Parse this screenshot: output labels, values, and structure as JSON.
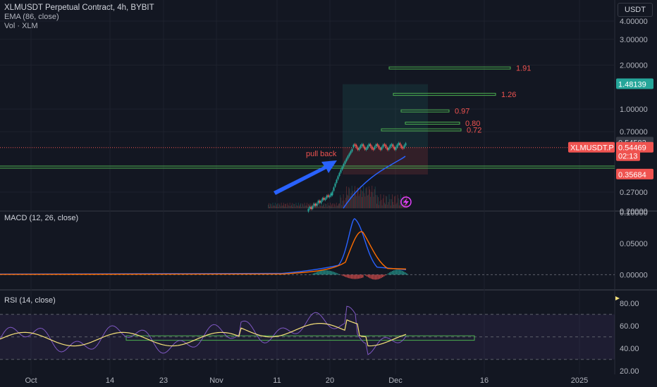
{
  "header": {
    "title": "XLMUSDT Perpetual Contract, 4h, BYBIT",
    "ema_label": "EMA (86, close)",
    "vol_label": "Vol · XLM",
    "currency_button": "USDT"
  },
  "macd_label": "MACD (12, 26, close)",
  "rsi_label": "RSI (14, close)",
  "colors": {
    "background": "#131722",
    "up": "#26a69a",
    "down": "#ef5350",
    "ema": "#2962ff",
    "macd_line": "#2962ff",
    "signal_line": "#ff6d00",
    "rsi_line": "#7e57c2",
    "rsi_ma": "#f7e27a",
    "target_green": "#4caf50",
    "annotation_arrow": "#2962ff"
  },
  "chart_data": [
    {
      "type": "candlestick",
      "pane": "price",
      "y_scale": "log",
      "ylim": [
        0.2,
        4.0
      ],
      "y_ticks": [
        "4.00000",
        "3.00000",
        "2.00000",
        "1.00000",
        "0.70000",
        "0.27000",
        "0.20000"
      ],
      "x_ticks": [
        "Oct",
        "14",
        "23",
        "Nov",
        "11",
        "20",
        "Dec",
        "16",
        "2025"
      ],
      "price_labels": [
        {
          "value": "1.48139",
          "kind": "green"
        },
        {
          "value": "0.54582",
          "kind": "gray"
        },
        {
          "value": "XLMUSDT.P",
          "kind": "red"
        },
        {
          "value": "0.54469",
          "kind": "red"
        },
        {
          "value": "02:13",
          "kind": "red"
        },
        {
          "value": "0.35684",
          "kind": "red"
        }
      ],
      "fib_targets": [
        {
          "label": "1.91",
          "price": 1.91
        },
        {
          "label": "1.26",
          "price": 1.26
        },
        {
          "label": "0.97",
          "price": 0.97
        },
        {
          "label": "0.80",
          "price": 0.8
        },
        {
          "label": "0.72",
          "price": 0.72
        }
      ],
      "support_level": 0.4,
      "current_price": 0.54469,
      "annotation": "pull back",
      "series": [
        {
          "name": "EMA (86, close)"
        },
        {
          "name": "Vol · XLM"
        }
      ]
    },
    {
      "type": "line",
      "pane": "macd",
      "y_ticks": [
        "0.10000",
        "0.05000",
        "0.00000"
      ],
      "ylim": [
        -0.02,
        0.1
      ]
    },
    {
      "type": "line",
      "pane": "rsi",
      "y_ticks": [
        "80.00",
        "60.00",
        "40.00",
        "20.00"
      ],
      "ylim": [
        18,
        88
      ],
      "bands": [
        70,
        50,
        30
      ],
      "support_box": [
        47,
        51
      ]
    }
  ]
}
